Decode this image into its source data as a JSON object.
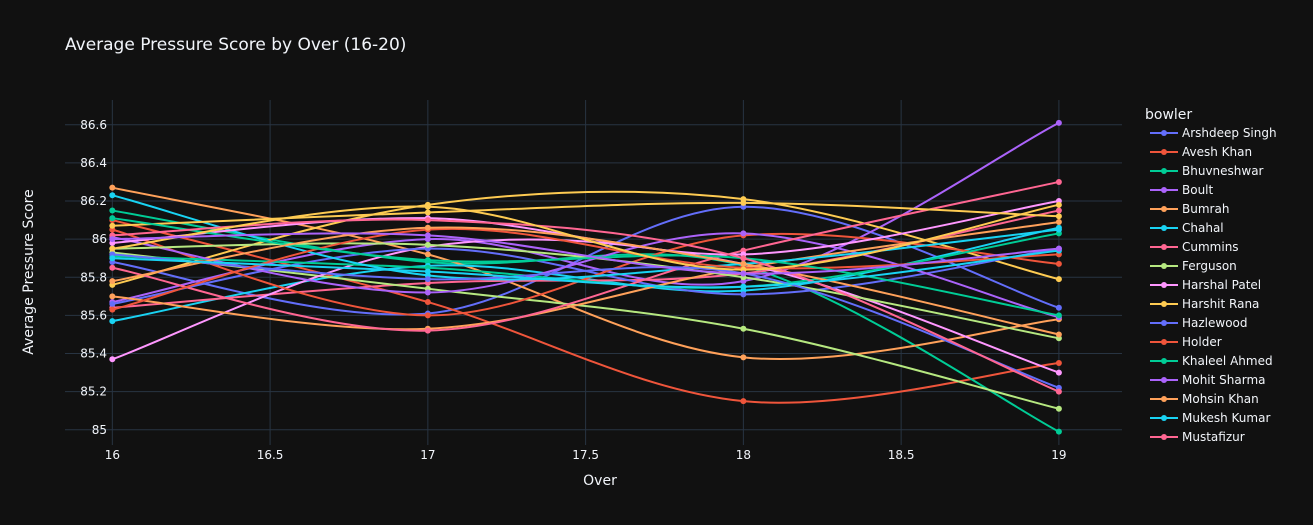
{
  "chart_data": {
    "type": "line",
    "title": "Average Pressure Score by Over (16-20)",
    "xlabel": "Over",
    "ylabel": "Average Pressure Score",
    "xlim": [
      15.85,
      19.2
    ],
    "ylim": [
      84.92,
      86.73
    ],
    "xticks": [
      16,
      16.5,
      17,
      17.5,
      18,
      18.5,
      19
    ],
    "xtick_labels": [
      "16",
      "16.5",
      "17",
      "17.5",
      "18",
      "18.5",
      "19"
    ],
    "yticks": [
      85,
      85.2,
      85.4,
      85.6,
      85.8,
      86,
      86.2,
      86.4,
      86.6
    ],
    "ytick_labels": [
      "85",
      "85.2",
      "85.4",
      "85.6",
      "85.8",
      "86",
      "86.2",
      "86.4",
      "86.6"
    ],
    "grid": true,
    "legend_title": "bowler",
    "legend_position": "right",
    "x": [
      16,
      17,
      18,
      19
    ],
    "series": [
      {
        "name": "Arshdeep Singh",
        "color": "#636efa",
        "values": [
          85.88,
          85.61,
          86.17,
          85.64
        ]
      },
      {
        "name": "Avesh Khan",
        "color": "#ef553b",
        "values": [
          86.1,
          85.67,
          85.15,
          85.35
        ]
      },
      {
        "name": "Bhuvneshwar",
        "color": "#00cc96",
        "values": [
          86.15,
          85.88,
          85.86,
          84.99
        ]
      },
      {
        "name": "Boult",
        "color": "#ab63fa",
        "values": [
          85.67,
          86.0,
          85.78,
          86.61
        ]
      },
      {
        "name": "Bumrah",
        "color": "#ffa15a",
        "values": [
          86.27,
          85.92,
          85.38,
          85.58
        ]
      },
      {
        "name": "Chahal",
        "color": "#19d3f3",
        "values": [
          85.57,
          85.86,
          85.73,
          86.06
        ]
      },
      {
        "name": "Cummins",
        "color": "#ff6692",
        "values": [
          85.64,
          85.77,
          85.82,
          86.15
        ]
      },
      {
        "name": "Ferguson",
        "color": "#b6e880",
        "values": [
          85.93,
          85.74,
          85.53,
          85.11
        ]
      },
      {
        "name": "Harshal Patel",
        "color": "#ff97ff",
        "values": [
          85.37,
          85.96,
          85.87,
          85.3
        ]
      },
      {
        "name": "Harshit Rana",
        "color": "#fecb52",
        "values": [
          85.76,
          86.18,
          86.21,
          85.79
        ]
      },
      {
        "name": "Hazlewood",
        "color": "#636efa",
        "values": [
          85.66,
          85.95,
          85.71,
          85.95
        ]
      },
      {
        "name": "Holder",
        "color": "#ef553b",
        "values": [
          86.05,
          85.6,
          86.02,
          85.87
        ]
      },
      {
        "name": "Khaleel Ahmed",
        "color": "#00cc96",
        "values": [
          85.91,
          85.85,
          85.75,
          86.03
        ]
      },
      {
        "name": "Mohit Sharma",
        "color": "#ab63fa",
        "values": [
          86.01,
          85.72,
          86.03,
          85.59
        ]
      },
      {
        "name": "Mohsin Khan",
        "color": "#ffa15a",
        "values": [
          85.7,
          85.53,
          85.85,
          86.09
        ]
      },
      {
        "name": "Mukesh Kumar",
        "color": "#19d3f3",
        "values": [
          86.23,
          85.81,
          85.87,
          86.05
        ]
      },
      {
        "name": "Mustafizur",
        "color": "#ff6692",
        "values": [
          85.85,
          85.52,
          85.94,
          86.3
        ]
      },
      {
        "name": "",
        "color": "#b6e880",
        "values": [
          85.95,
          85.97,
          85.8,
          85.48
        ]
      },
      {
        "name": "",
        "color": "#ff97ff",
        "values": [
          85.98,
          86.11,
          85.92,
          86.2
        ]
      },
      {
        "name": "",
        "color": "#fecb52",
        "values": [
          86.07,
          86.14,
          86.19,
          86.12
        ]
      },
      {
        "name": "",
        "color": "#636efa",
        "values": [
          85.92,
          85.79,
          85.82,
          85.22
        ]
      },
      {
        "name": "",
        "color": "#ef553b",
        "values": [
          85.63,
          86.05,
          85.85,
          85.92
        ]
      },
      {
        "name": "",
        "color": "#00cc96",
        "values": [
          86.11,
          85.89,
          85.9,
          85.6
        ]
      },
      {
        "name": "",
        "color": "#ffa15a",
        "values": [
          85.78,
          86.06,
          85.87,
          85.5
        ]
      },
      {
        "name": "",
        "color": "#ff6692",
        "values": [
          86.02,
          86.1,
          85.9,
          85.2
        ]
      },
      {
        "name": "",
        "color": "#fecb52",
        "values": [
          85.95,
          86.17,
          85.84,
          86.18
        ]
      },
      {
        "name": "",
        "color": "#19d3f3",
        "values": [
          85.9,
          85.83,
          85.75,
          85.94
        ]
      },
      {
        "name": "",
        "color": "#ab63fa",
        "values": [
          86.0,
          86.02,
          85.82,
          85.95
        ]
      }
    ]
  }
}
